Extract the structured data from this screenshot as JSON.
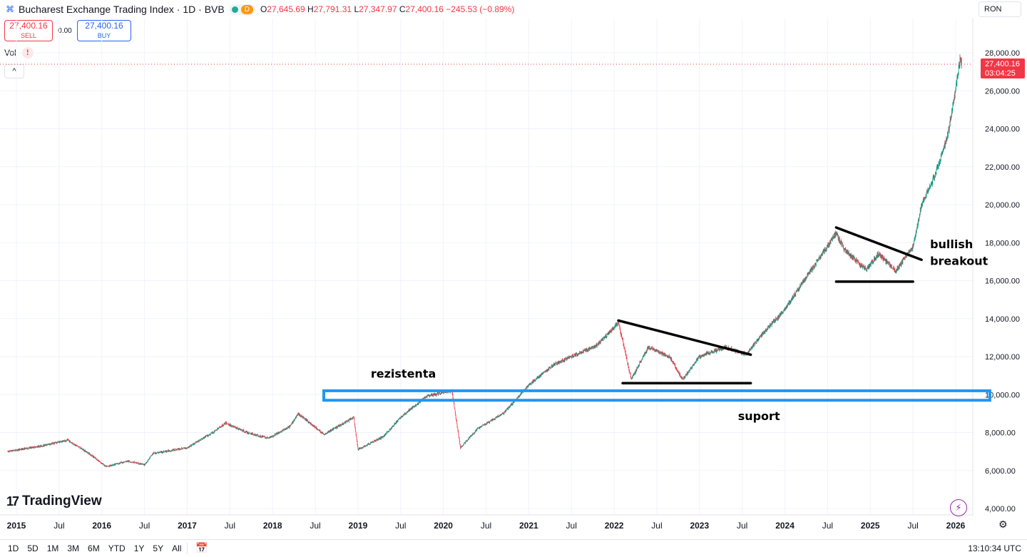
{
  "header": {
    "title": "Bucharest Exchange Trading Index · 1D · BVB",
    "interval_badge": "D",
    "ohlc": {
      "o_label": "O",
      "o": "27,645.69",
      "h_label": "H",
      "h": "27,791.31",
      "l_label": "L",
      "l": "27,347.97",
      "c_label": "C",
      "c": "27,400.16",
      "change": "−245.53 (−0.89%)"
    }
  },
  "trade": {
    "sell_price": "27,400.16",
    "sell_label": "SELL",
    "spread": "0.00",
    "buy_price": "27,400.16",
    "buy_label": "BUY"
  },
  "volume_label": "Vol",
  "warning_text": "!",
  "collapse_label": "^",
  "currency": "RON",
  "last_price": {
    "value": "27,400.16",
    "countdown": "03:04:25",
    "color": "#f23645"
  },
  "brand": "TradingView",
  "timeframes": [
    "1D",
    "5D",
    "1M",
    "3M",
    "6M",
    "YTD",
    "1Y",
    "5Y",
    "All"
  ],
  "clock": "13:10:34 UTC",
  "colors": {
    "up": "#089981",
    "down": "#f23645",
    "support_box": "#2196f3",
    "accent": "#2962ff"
  },
  "chart_data": {
    "type": "candlestick",
    "title": "Bucharest Exchange Trading Index · 1D · BVB",
    "x_range": [
      2014.9,
      2026.2
    ],
    "ylim": [
      3700,
      28700
    ],
    "y_ticks": [
      4000,
      6000,
      8000,
      10000,
      12000,
      14000,
      16000,
      18000,
      20000,
      22000,
      24000,
      26000,
      28000
    ],
    "y_tick_labels": [
      "4,000.00",
      "6,000.00",
      "8,000.00",
      "10,000.00",
      "12,000.00",
      "14,000.00",
      "16,000.00",
      "18,000.00",
      "20,000.00",
      "22,000.00",
      "24,000.00",
      "26,000.00",
      "28,000.00"
    ],
    "x_ticks": [
      {
        "t": 2015.0,
        "label": "2015",
        "bold": true
      },
      {
        "t": 2015.5,
        "label": "Jul",
        "bold": false
      },
      {
        "t": 2016.0,
        "label": "2016",
        "bold": true
      },
      {
        "t": 2016.5,
        "label": "Jul",
        "bold": false
      },
      {
        "t": 2017.0,
        "label": "2017",
        "bold": true
      },
      {
        "t": 2017.5,
        "label": "Jul",
        "bold": false
      },
      {
        "t": 2018.0,
        "label": "2018",
        "bold": true
      },
      {
        "t": 2018.5,
        "label": "Jul",
        "bold": false
      },
      {
        "t": 2019.0,
        "label": "2019",
        "bold": true
      },
      {
        "t": 2019.5,
        "label": "Jul",
        "bold": false
      },
      {
        "t": 2020.0,
        "label": "2020",
        "bold": true
      },
      {
        "t": 2020.5,
        "label": "Jul",
        "bold": false
      },
      {
        "t": 2021.0,
        "label": "2021",
        "bold": true
      },
      {
        "t": 2021.5,
        "label": "Jul",
        "bold": false
      },
      {
        "t": 2022.0,
        "label": "2022",
        "bold": true
      },
      {
        "t": 2022.5,
        "label": "Jul",
        "bold": false
      },
      {
        "t": 2023.0,
        "label": "2023",
        "bold": true
      },
      {
        "t": 2023.5,
        "label": "Jul",
        "bold": false
      },
      {
        "t": 2024.0,
        "label": "2024",
        "bold": true
      },
      {
        "t": 2024.5,
        "label": "Jul",
        "bold": false
      },
      {
        "t": 2025.0,
        "label": "2025",
        "bold": true
      },
      {
        "t": 2025.5,
        "label": "Jul",
        "bold": false
      },
      {
        "t": 2026.0,
        "label": "2026",
        "bold": true
      }
    ],
    "price_path": [
      [
        2014.9,
        7000
      ],
      [
        2015.3,
        7300
      ],
      [
        2015.6,
        7600
      ],
      [
        2015.85,
        6900
      ],
      [
        2016.05,
        6200
      ],
      [
        2016.3,
        6500
      ],
      [
        2016.5,
        6300
      ],
      [
        2016.6,
        6900
      ],
      [
        2017.0,
        7200
      ],
      [
        2017.3,
        8000
      ],
      [
        2017.45,
        8500
      ],
      [
        2017.7,
        8000
      ],
      [
        2017.95,
        7700
      ],
      [
        2018.2,
        8300
      ],
      [
        2018.3,
        9000
      ],
      [
        2018.6,
        7900
      ],
      [
        2018.95,
        8800
      ],
      [
        2019.0,
        7100
      ],
      [
        2019.3,
        7800
      ],
      [
        2019.5,
        8800
      ],
      [
        2019.8,
        9900
      ],
      [
        2020.1,
        10200
      ],
      [
        2020.2,
        7200
      ],
      [
        2020.4,
        8200
      ],
      [
        2020.7,
        9000
      ],
      [
        2021.0,
        10500
      ],
      [
        2021.3,
        11600
      ],
      [
        2021.6,
        12200
      ],
      [
        2021.8,
        12600
      ],
      [
        2022.05,
        13800
      ],
      [
        2022.2,
        10800
      ],
      [
        2022.4,
        12500
      ],
      [
        2022.65,
        12000
      ],
      [
        2022.8,
        10800
      ],
      [
        2023.0,
        12000
      ],
      [
        2023.3,
        12500
      ],
      [
        2023.55,
        12100
      ],
      [
        2023.7,
        13000
      ],
      [
        2024.0,
        14500
      ],
      [
        2024.3,
        16500
      ],
      [
        2024.6,
        18500
      ],
      [
        2024.7,
        17600
      ],
      [
        2024.95,
        16600
      ],
      [
        2025.1,
        17400
      ],
      [
        2025.3,
        16500
      ],
      [
        2025.4,
        17200
      ],
      [
        2025.5,
        17800
      ],
      [
        2025.6,
        20000
      ],
      [
        2025.75,
        21500
      ],
      [
        2025.9,
        23500
      ],
      [
        2025.98,
        25500
      ],
      [
        2026.05,
        27600
      ],
      [
        2026.07,
        27400
      ]
    ],
    "last_value": 27400.16,
    "annotations": [
      {
        "kind": "text",
        "text": "rezistenta",
        "t": 2019.15,
        "y": 10900
      },
      {
        "kind": "text",
        "text": "suport",
        "t": 2023.45,
        "y": 8650
      },
      {
        "kind": "text",
        "text": "bullish",
        "t": 2025.7,
        "y": 17700
      },
      {
        "kind": "text",
        "text": "breakout",
        "t": 2025.7,
        "y": 16830
      },
      {
        "kind": "box",
        "label": "support/resistance zone",
        "t1": 2018.6,
        "t2": 2026.4,
        "y1": 9700,
        "y2": 10200
      },
      {
        "kind": "line",
        "label": "falling resistance 2022-23",
        "t1": 2022.05,
        "y1": 13900,
        "t2": 2023.6,
        "y2": 12100
      },
      {
        "kind": "line",
        "label": "support 2022-23",
        "t1": 2022.1,
        "y1": 10600,
        "t2": 2023.6,
        "y2": 10600
      },
      {
        "kind": "line",
        "label": "falling resistance 2024-25",
        "t1": 2024.6,
        "y1": 18800,
        "t2": 2025.6,
        "y2": 17100
      },
      {
        "kind": "line",
        "label": "support 2024-25",
        "t1": 2024.6,
        "y1": 15950,
        "t2": 2025.5,
        "y2": 15950
      }
    ]
  }
}
